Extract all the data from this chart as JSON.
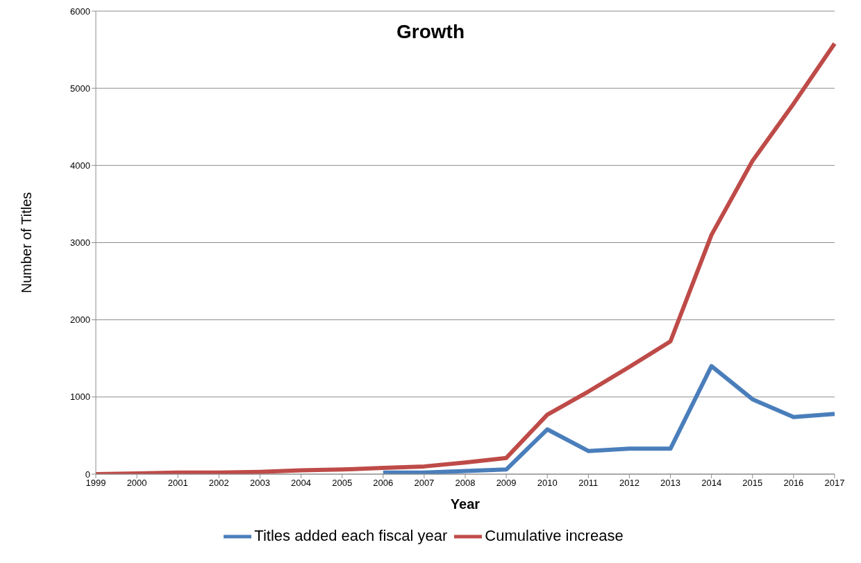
{
  "chart_data": {
    "type": "line",
    "title": "Growth",
    "xlabel": "Year",
    "ylabel": "Number of Titles",
    "categories": [
      "1999",
      "2000",
      "2001",
      "2002",
      "2003",
      "2004",
      "2005",
      "2006",
      "2007",
      "2008",
      "2009",
      "2010",
      "2011",
      "2012",
      "2013",
      "2014",
      "2015",
      "2016",
      "2017"
    ],
    "series": [
      {
        "name": "Titles added each fiscal year",
        "color": "#4a7ebb",
        "values": [
          null,
          null,
          null,
          null,
          null,
          null,
          null,
          20,
          20,
          40,
          60,
          580,
          300,
          330,
          330,
          1400,
          970,
          740,
          780
        ]
      },
      {
        "name": "Cumulative increase",
        "color": "#be4b48",
        "values": [
          0,
          10,
          20,
          20,
          30,
          50,
          60,
          80,
          100,
          150,
          210,
          770,
          1070,
          1390,
          1720,
          3100,
          4060,
          4800,
          5580
        ]
      }
    ],
    "ylim": [
      0,
      6000
    ],
    "yticks": [
      0,
      1000,
      2000,
      3000,
      4000,
      5000,
      6000
    ],
    "grid": "y",
    "legend": "bottom",
    "marker": "none",
    "line_style": "solid"
  }
}
